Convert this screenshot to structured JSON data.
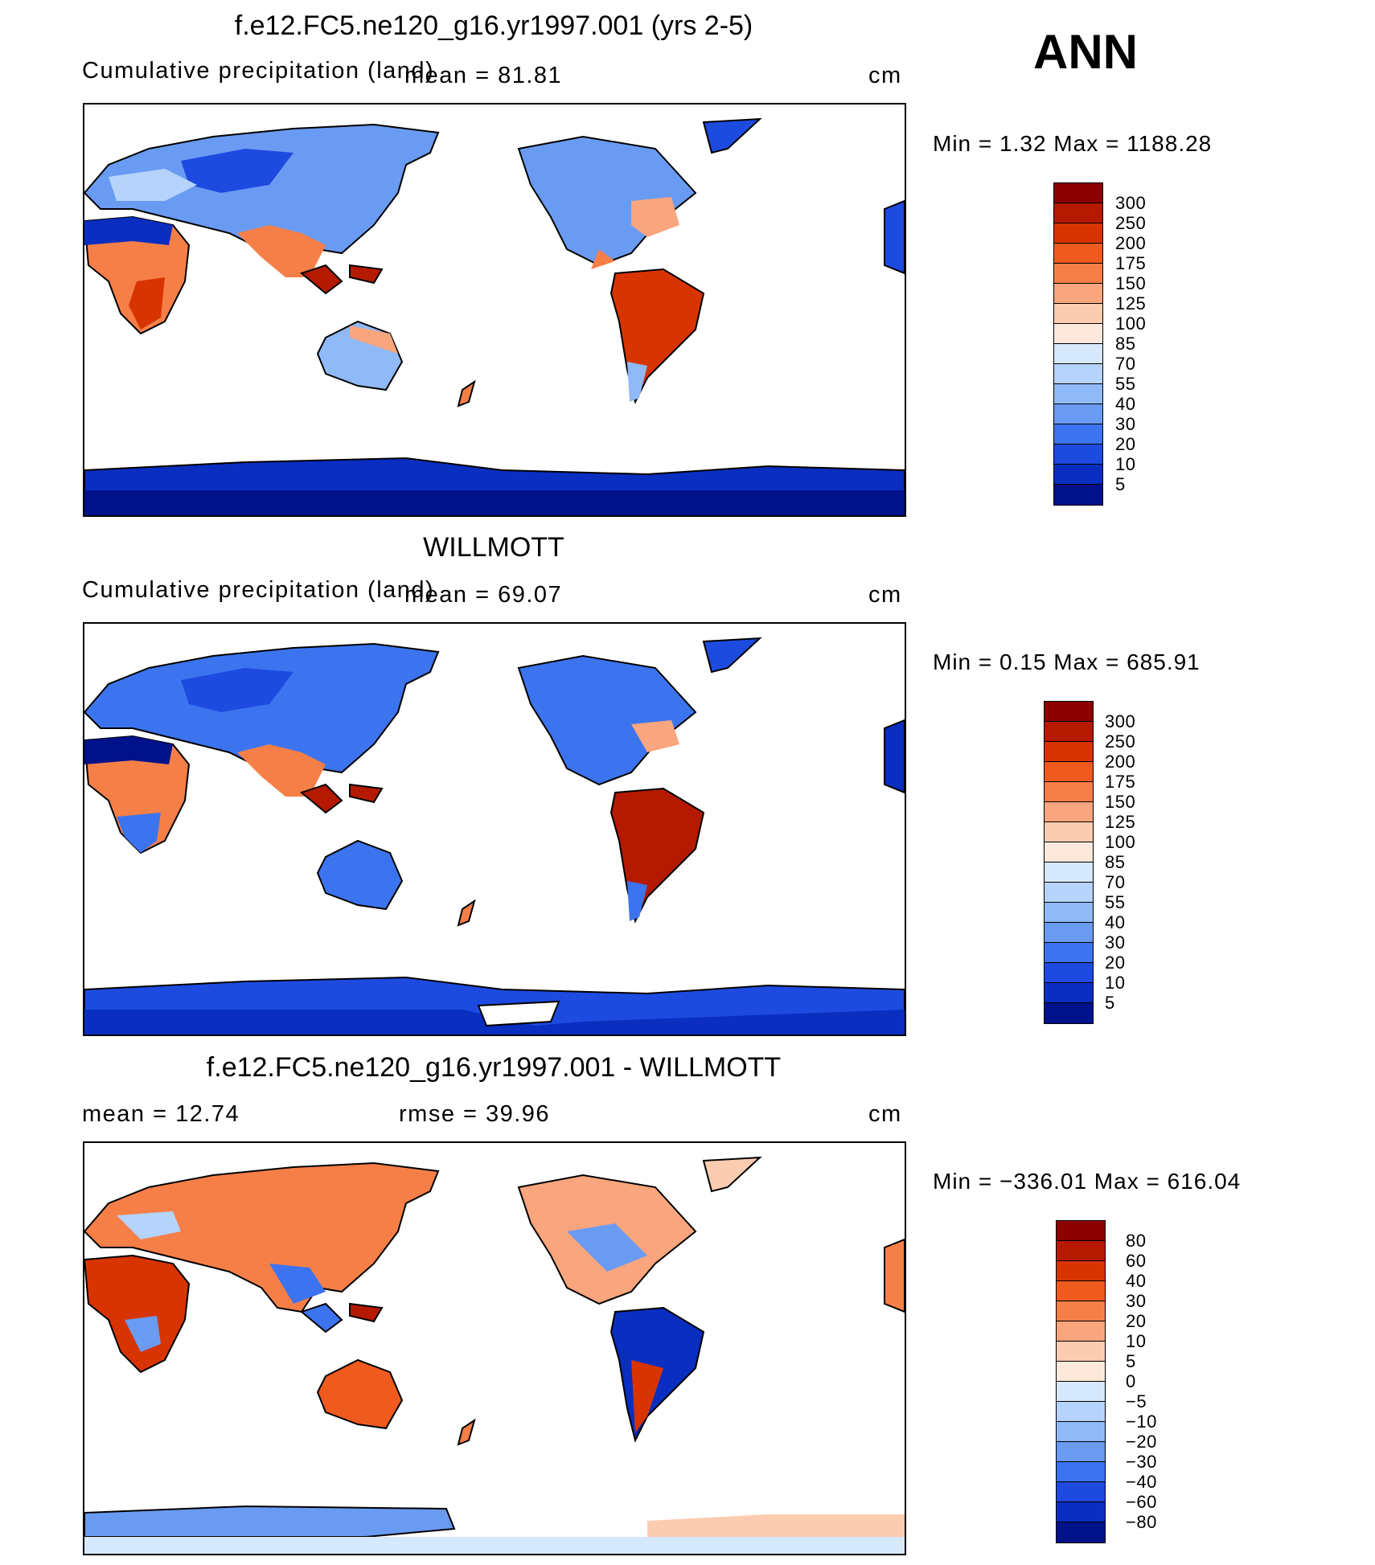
{
  "season": "ANN",
  "panels": [
    {
      "title": "f.e12.FC5.ne120_g16.yr1997.001 (yrs 2-5)",
      "subtitle_left": "Cumulative precipitation (land)",
      "stat1": "mean =   81.81",
      "stat2": "",
      "units": "cm",
      "minmax": "Min  =    1.32  Max  =  1188.28",
      "colorbar": {
        "labels": [
          "300",
          "250",
          "200",
          "175",
          "150",
          "125",
          "100",
          "85",
          "70",
          "55",
          "40",
          "30",
          "20",
          "10",
          "5"
        ],
        "colors": [
          "#8b0000",
          "#b51a00",
          "#d83400",
          "#ef5a1e",
          "#f67f48",
          "#f9a57d",
          "#fcccb1",
          "#fde9dc",
          "#d6e8fb",
          "#b5d3fb",
          "#90b9f8",
          "#6a9bf2",
          "#3c74ef",
          "#1d4be0",
          "#0a2ec0",
          "#00128a"
        ]
      }
    },
    {
      "title": "WILLMOTT",
      "subtitle_left": "Cumulative precipitation (land)",
      "stat1": "mean =   69.07",
      "stat2": "",
      "units": "cm",
      "minmax": "Min  =    0.15  Max  =  685.91",
      "colorbar": {
        "labels": [
          "300",
          "250",
          "200",
          "175",
          "150",
          "125",
          "100",
          "85",
          "70",
          "55",
          "40",
          "30",
          "20",
          "10",
          "5"
        ],
        "colors": [
          "#8b0000",
          "#b51a00",
          "#d83400",
          "#ef5a1e",
          "#f67f48",
          "#f9a57d",
          "#fcccb1",
          "#fde9dc",
          "#d6e8fb",
          "#b5d3fb",
          "#90b9f8",
          "#6a9bf2",
          "#3c74ef",
          "#1d4be0",
          "#0a2ec0",
          "#00128a"
        ]
      }
    },
    {
      "title": "f.e12.FC5.ne120_g16.yr1997.001 - WILLMOTT",
      "subtitle_left": "",
      "stat1": "mean  =    12.74",
      "stat2": "rmse  =    39.96",
      "units": "cm",
      "minmax": "Min  = −336.01  Max  =  616.04",
      "colorbar": {
        "labels": [
          "80",
          "60",
          "40",
          "30",
          "20",
          "10",
          "5",
          "0",
          "−5",
          "−10",
          "−20",
          "−30",
          "−40",
          "−60",
          "−80"
        ],
        "colors": [
          "#8b0000",
          "#b51a00",
          "#d83400",
          "#ef5a1e",
          "#f67f48",
          "#f9a57d",
          "#fcccb1",
          "#fde9dc",
          "#d6e8fb",
          "#b5d3fb",
          "#90b9f8",
          "#6a9bf2",
          "#3c74ef",
          "#1d4be0",
          "#0a2ec0",
          "#00128a"
        ]
      }
    }
  ]
}
